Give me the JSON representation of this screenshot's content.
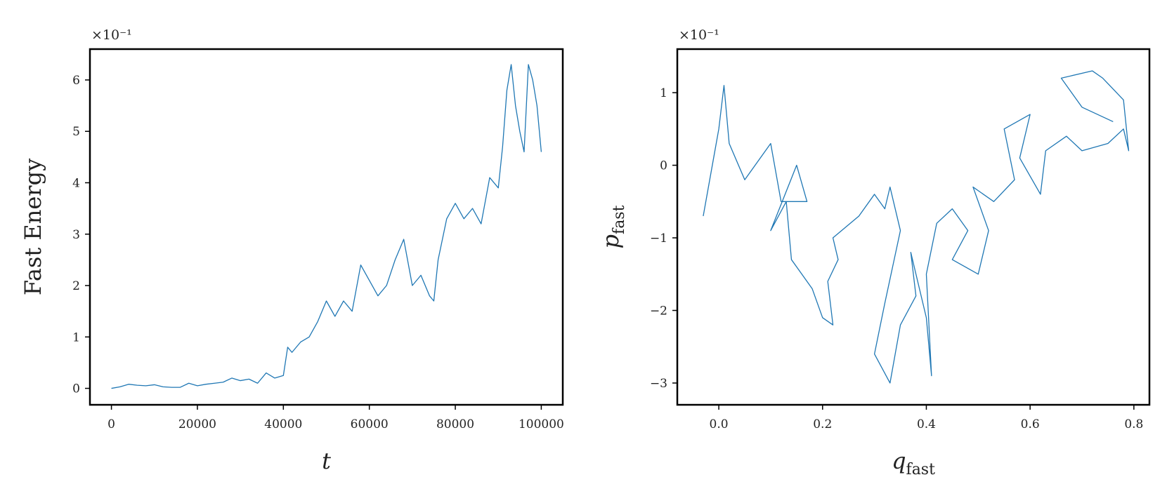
{
  "chart_data": [
    {
      "type": "line",
      "xlabel": "t",
      "ylabel": "Fast Energy",
      "offset_label": "×10⁻¹",
      "x": [
        0,
        2000,
        4000,
        6000,
        8000,
        10000,
        12000,
        14000,
        16000,
        18000,
        20000,
        22000,
        24000,
        26000,
        28000,
        30000,
        32000,
        34000,
        36000,
        38000,
        40000,
        41000,
        42000,
        44000,
        46000,
        48000,
        50000,
        52000,
        54000,
        56000,
        58000,
        60000,
        62000,
        64000,
        66000,
        68000,
        70000,
        72000,
        74000,
        75000,
        76000,
        78000,
        80000,
        82000,
        84000,
        86000,
        88000,
        90000,
        91000,
        92000,
        93000,
        94000,
        95000,
        96000,
        97000,
        98000,
        99000,
        100000
      ],
      "series": [
        {
          "color": "#1f77b4",
          "values": [
            0,
            0.03,
            0.08,
            0.06,
            0.05,
            0.07,
            0.03,
            0.02,
            0.02,
            0.1,
            0.05,
            0.08,
            0.1,
            0.12,
            0.2,
            0.15,
            0.18,
            0.1,
            0.3,
            0.2,
            0.25,
            0.8,
            0.7,
            0.9,
            1.0,
            1.3,
            1.7,
            1.4,
            1.7,
            1.5,
            2.4,
            2.1,
            1.8,
            2.0,
            2.5,
            2.9,
            2.0,
            2.2,
            1.8,
            1.7,
            2.5,
            3.3,
            3.6,
            3.3,
            3.5,
            3.2,
            4.1,
            3.9,
            4.7,
            5.8,
            6.3,
            5.5,
            5.0,
            4.6,
            6.3,
            6.0,
            5.5,
            4.6
          ]
        }
      ],
      "xlim": [
        -5000,
        105000
      ],
      "ylim": [
        -0.32,
        6.6
      ],
      "xticks": [
        0,
        20000,
        40000,
        60000,
        80000,
        100000
      ],
      "yticks": [
        0,
        1,
        2,
        3,
        4,
        5,
        6
      ]
    },
    {
      "type": "line",
      "xlabel": "q",
      "xlabel_sub": "fast",
      "ylabel": "p",
      "ylabel_sub": "fast",
      "offset_label": "×10⁻¹",
      "x": [
        -0.03,
        0.0,
        0.01,
        0.02,
        0.05,
        0.1,
        0.12,
        0.17,
        0.15,
        0.1,
        0.13,
        0.14,
        0.18,
        0.2,
        0.22,
        0.21,
        0.23,
        0.22,
        0.27,
        0.3,
        0.32,
        0.33,
        0.35,
        0.32,
        0.3,
        0.33,
        0.35,
        0.38,
        0.37,
        0.4,
        0.41,
        0.4,
        0.42,
        0.45,
        0.48,
        0.45,
        0.5,
        0.52,
        0.49,
        0.53,
        0.57,
        0.55,
        0.6,
        0.58,
        0.62,
        0.63,
        0.67,
        0.7,
        0.75,
        0.78,
        0.79,
        0.78,
        0.74,
        0.72,
        0.66,
        0.7,
        0.76
      ],
      "series": [
        {
          "color": "#1f77b4",
          "values": [
            -0.7,
            0.5,
            1.1,
            0.3,
            -0.2,
            0.3,
            -0.5,
            -0.5,
            0,
            -0.9,
            -0.5,
            -1.3,
            -1.7,
            -2.1,
            -2.2,
            -1.6,
            -1.3,
            -1.0,
            -0.7,
            -0.4,
            -0.6,
            -0.3,
            -0.9,
            -1.9,
            -2.6,
            -3.0,
            -2.2,
            -1.8,
            -1.2,
            -2.1,
            -2.9,
            -1.5,
            -0.8,
            -0.6,
            -0.9,
            -1.3,
            -1.5,
            -0.9,
            -0.3,
            -0.5,
            -0.2,
            0.5,
            0.7,
            0.1,
            -0.4,
            0.2,
            0.4,
            0.2,
            0.3,
            0.5,
            0.2,
            0.9,
            1.2,
            1.3,
            1.2,
            0.8,
            0.6
          ]
        }
      ],
      "xlim": [
        -0.08,
        0.83
      ],
      "ylim": [
        -3.3,
        1.6
      ],
      "xticks": [
        {
          "value": 0,
          "label": "0.0"
        },
        0.2,
        0.4,
        0.6,
        0.8
      ],
      "yticks": [
        {
          "value": -3,
          "label": "−3"
        },
        {
          "value": -2,
          "label": "−2"
        },
        {
          "value": -1,
          "label": "−1"
        },
        0,
        1
      ]
    }
  ]
}
